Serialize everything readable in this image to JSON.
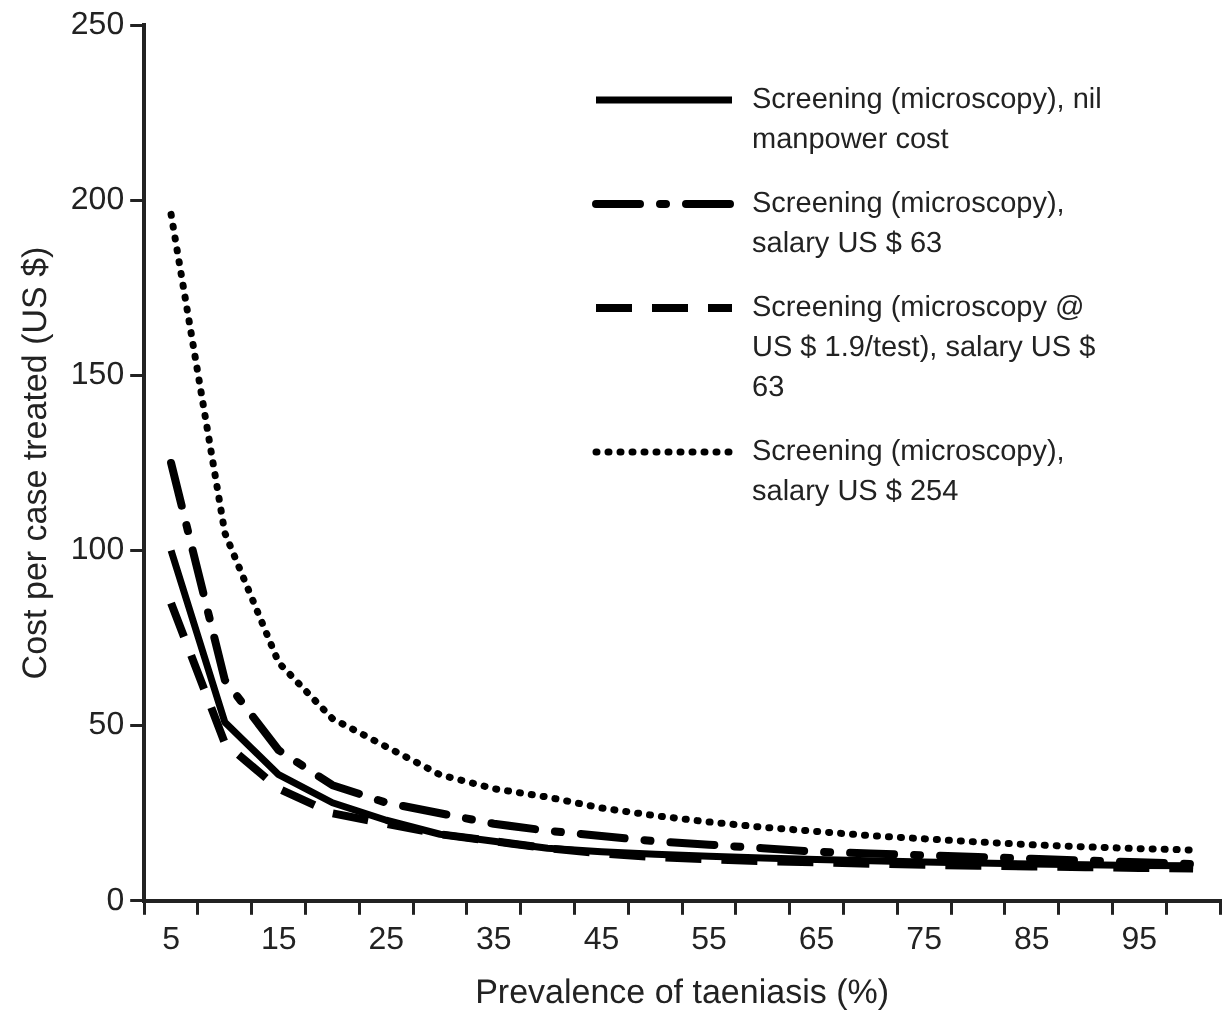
{
  "chart_data": {
    "type": "line",
    "xlabel": "Prevalence of taeniasis (%)",
    "ylabel": "Cost per case treated (US $)",
    "categories": [
      "5",
      null,
      "15",
      null,
      "25",
      null,
      "35",
      null,
      "45",
      null,
      "55",
      null,
      "65",
      null,
      "75",
      null,
      "85",
      null,
      "95",
      null
    ],
    "ylim": [
      0,
      250
    ],
    "yticks": [
      0,
      50,
      100,
      150,
      200,
      250
    ],
    "grid": false,
    "legend": "top right",
    "marker": "none",
    "series": [
      {
        "name": "Screening (microscopy), nil manpower cost",
        "color": "#000000",
        "line_style": "solid",
        "values": [
          100,
          51,
          36,
          28,
          23,
          19,
          17,
          15,
          14,
          13.3,
          12.7,
          12.2,
          11.8,
          11.4,
          11.1,
          10.8,
          10.5,
          10.3,
          10.1,
          10
        ]
      },
      {
        "name": "Screening (microscopy), salary US $ 63",
        "color": "#000000",
        "line_style": "dashdot",
        "values": [
          125,
          63,
          43,
          33,
          28,
          25,
          22,
          20,
          18.5,
          17,
          16,
          15,
          14,
          13.5,
          13,
          12.5,
          12,
          11.5,
          11,
          10.5
        ]
      },
      {
        "name": "Screening (microscopy @ US $ 1.9/test), salary US $ 63",
        "color": "#000000",
        "line_style": "dashed",
        "values": [
          85,
          45,
          32,
          25,
          22,
          19,
          17,
          15,
          13.5,
          12.5,
          11.8,
          11.3,
          11,
          10.6,
          10.3,
          10,
          9.8,
          9.6,
          9.4,
          9.2
        ]
      },
      {
        "name": "Screening (microscopy), salary US $ 254",
        "color": "#000000",
        "line_style": "dotted",
        "values": [
          196,
          105,
          68,
          52,
          44,
          36,
          32,
          29.6,
          26.5,
          24.3,
          22.5,
          21,
          19.8,
          18.6,
          17.7,
          16.8,
          16,
          15.4,
          14.9,
          14.5
        ]
      }
    ]
  }
}
